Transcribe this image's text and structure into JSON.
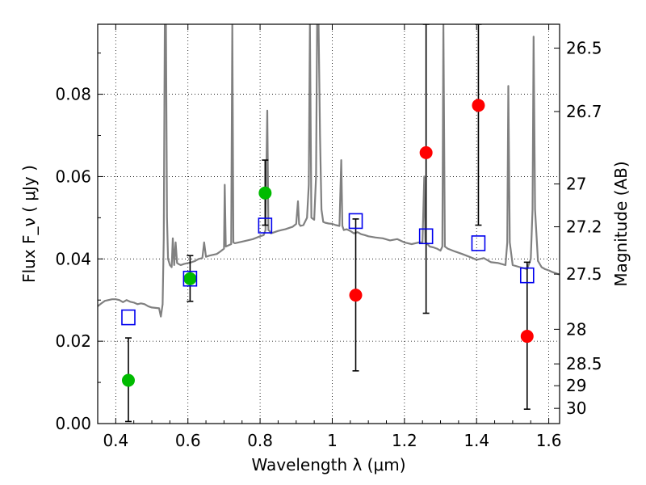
{
  "chart_data": {
    "type": "scatter",
    "xlabel": "Wavelength  λ (μm)",
    "ylabel": "Flux  F_ν  ( μJy )",
    "ylabel_right": "Magnitude (AB)",
    "xlim": [
      0.35,
      1.63
    ],
    "ylim": [
      0.0,
      0.097
    ],
    "grid": true,
    "x_ticks": [
      0.4,
      0.6,
      0.8,
      1.0,
      1.2,
      1.4,
      1.6
    ],
    "x_tick_labels": [
      "0.4",
      "0.6",
      "0.8",
      "1",
      "1.2",
      "1.4",
      "1.6"
    ],
    "y_ticks": [
      0.0,
      0.02,
      0.04,
      0.06,
      0.08
    ],
    "y_tick_labels": [
      "0.00",
      "0.02",
      "0.04",
      "0.06",
      "0.08"
    ],
    "right_ticks": [
      {
        "flux": 0.0912,
        "label": "26.5"
      },
      {
        "flux": 0.0758,
        "label": "26.7"
      },
      {
        "flux": 0.0582,
        "label": "27"
      },
      {
        "flux": 0.0478,
        "label": "27.2"
      },
      {
        "flux": 0.0363,
        "label": "27.5"
      },
      {
        "flux": 0.0229,
        "label": "28"
      },
      {
        "flux": 0.0145,
        "label": "28.5"
      },
      {
        "flux": 0.0092,
        "label": "29"
      },
      {
        "flux": 0.0037,
        "label": "30"
      }
    ],
    "series": [
      {
        "name": "Observed (green)",
        "color": "#00bb00",
        "points": [
          {
            "x": 0.435,
            "y": 0.0105,
            "ylo": 0.0005,
            "yhi": 0.0208
          },
          {
            "x": 0.606,
            "y": 0.0352,
            "ylo": 0.0297,
            "yhi": 0.0408
          },
          {
            "x": 0.814,
            "y": 0.056,
            "ylo": 0.0482,
            "yhi": 0.064
          }
        ]
      },
      {
        "name": "Observed (red)",
        "color": "#ff0000",
        "points": [
          {
            "x": 1.065,
            "y": 0.0312,
            "ylo": 0.0128,
            "yhi": 0.0497
          },
          {
            "x": 1.26,
            "y": 0.0658,
            "ylo": 0.0268,
            "yhi": 0.097
          },
          {
            "x": 1.405,
            "y": 0.0773,
            "ylo": 0.0482,
            "yhi": 0.097
          },
          {
            "x": 1.54,
            "y": 0.0212,
            "ylo": 0.0035,
            "yhi": 0.0392
          }
        ]
      },
      {
        "name": "Model (blue squares)",
        "color": "#0000ee",
        "points": [
          {
            "x": 0.435,
            "y": 0.0258
          },
          {
            "x": 0.606,
            "y": 0.0352
          },
          {
            "x": 0.814,
            "y": 0.0481
          },
          {
            "x": 1.065,
            "y": 0.0492
          },
          {
            "x": 1.26,
            "y": 0.0455
          },
          {
            "x": 1.405,
            "y": 0.0438
          },
          {
            "x": 1.54,
            "y": 0.036
          }
        ]
      }
    ],
    "spectrum": {
      "name": "Model spectrum",
      "color": "#808080",
      "x": [
        0.35,
        0.36,
        0.37,
        0.38,
        0.39,
        0.4,
        0.41,
        0.42,
        0.43,
        0.44,
        0.45,
        0.46,
        0.47,
        0.48,
        0.49,
        0.5,
        0.51,
        0.52,
        0.525,
        0.53,
        0.533,
        0.536,
        0.539,
        0.542,
        0.545,
        0.55,
        0.555,
        0.558,
        0.562,
        0.566,
        0.57,
        0.575,
        0.58,
        0.59,
        0.6,
        0.61,
        0.62,
        0.63,
        0.64,
        0.645,
        0.65,
        0.66,
        0.67,
        0.68,
        0.69,
        0.7,
        0.702,
        0.705,
        0.71,
        0.715,
        0.72,
        0.723,
        0.726,
        0.73,
        0.74,
        0.75,
        0.76,
        0.78,
        0.8,
        0.81,
        0.815,
        0.82,
        0.823,
        0.826,
        0.83,
        0.84,
        0.85,
        0.86,
        0.87,
        0.88,
        0.89,
        0.9,
        0.905,
        0.908,
        0.912,
        0.92,
        0.93,
        0.935,
        0.938,
        0.942,
        0.95,
        0.955,
        0.958,
        0.962,
        0.966,
        0.97,
        0.975,
        0.98,
        0.99,
        1.0,
        1.01,
        1.02,
        1.025,
        1.028,
        1.032,
        1.04,
        1.05,
        1.06,
        1.07,
        1.08,
        1.09,
        1.1,
        1.12,
        1.14,
        1.16,
        1.18,
        1.2,
        1.22,
        1.24,
        1.25,
        1.255,
        1.258,
        1.262,
        1.27,
        1.28,
        1.29,
        1.3,
        1.305,
        1.308,
        1.312,
        1.32,
        1.34,
        1.36,
        1.38,
        1.4,
        1.42,
        1.44,
        1.46,
        1.48,
        1.485,
        1.488,
        1.492,
        1.5,
        1.52,
        1.54,
        1.55,
        1.555,
        1.558,
        1.562,
        1.57,
        1.58,
        1.59,
        1.6,
        1.61,
        1.62,
        1.63
      ],
      "y": [
        0.0285,
        0.0292,
        0.0298,
        0.03,
        0.0302,
        0.0302,
        0.03,
        0.0295,
        0.03,
        0.0296,
        0.0294,
        0.029,
        0.0292,
        0.029,
        0.0285,
        0.0282,
        0.0281,
        0.028,
        0.026,
        0.029,
        0.045,
        0.097,
        0.097,
        0.05,
        0.04,
        0.0385,
        0.038,
        0.045,
        0.0385,
        0.044,
        0.039,
        0.0387,
        0.0385,
        0.0388,
        0.039,
        0.0392,
        0.0395,
        0.04,
        0.0402,
        0.044,
        0.0405,
        0.0408,
        0.041,
        0.0412,
        0.0418,
        0.0425,
        0.058,
        0.043,
        0.0432,
        0.0434,
        0.0436,
        0.097,
        0.044,
        0.0438,
        0.044,
        0.0442,
        0.0444,
        0.0448,
        0.0455,
        0.0458,
        0.047,
        0.076,
        0.047,
        0.0468,
        0.0462,
        0.0465,
        0.0468,
        0.047,
        0.0472,
        0.0475,
        0.0478,
        0.0485,
        0.054,
        0.0485,
        0.048,
        0.0482,
        0.05,
        0.058,
        0.097,
        0.05,
        0.0495,
        0.06,
        0.097,
        0.097,
        0.07,
        0.052,
        0.049,
        0.0488,
        0.0486,
        0.0485,
        0.0482,
        0.048,
        0.064,
        0.048,
        0.047,
        0.0472,
        0.0468,
        0.0462,
        0.0465,
        0.046,
        0.0458,
        0.0455,
        0.0452,
        0.045,
        0.0445,
        0.0448,
        0.044,
        0.0436,
        0.044,
        0.044,
        0.06,
        0.044,
        0.0438,
        0.043,
        0.0428,
        0.0425,
        0.042,
        0.043,
        0.097,
        0.043,
        0.0425,
        0.0418,
        0.0412,
        0.0405,
        0.0398,
        0.0402,
        0.0392,
        0.039,
        0.0385,
        0.044,
        0.082,
        0.044,
        0.0385,
        0.038,
        0.0375,
        0.04,
        0.052,
        0.094,
        0.052,
        0.0395,
        0.038,
        0.0375,
        0.0372,
        0.0368,
        0.0365,
        0.0362
      ]
    }
  }
}
